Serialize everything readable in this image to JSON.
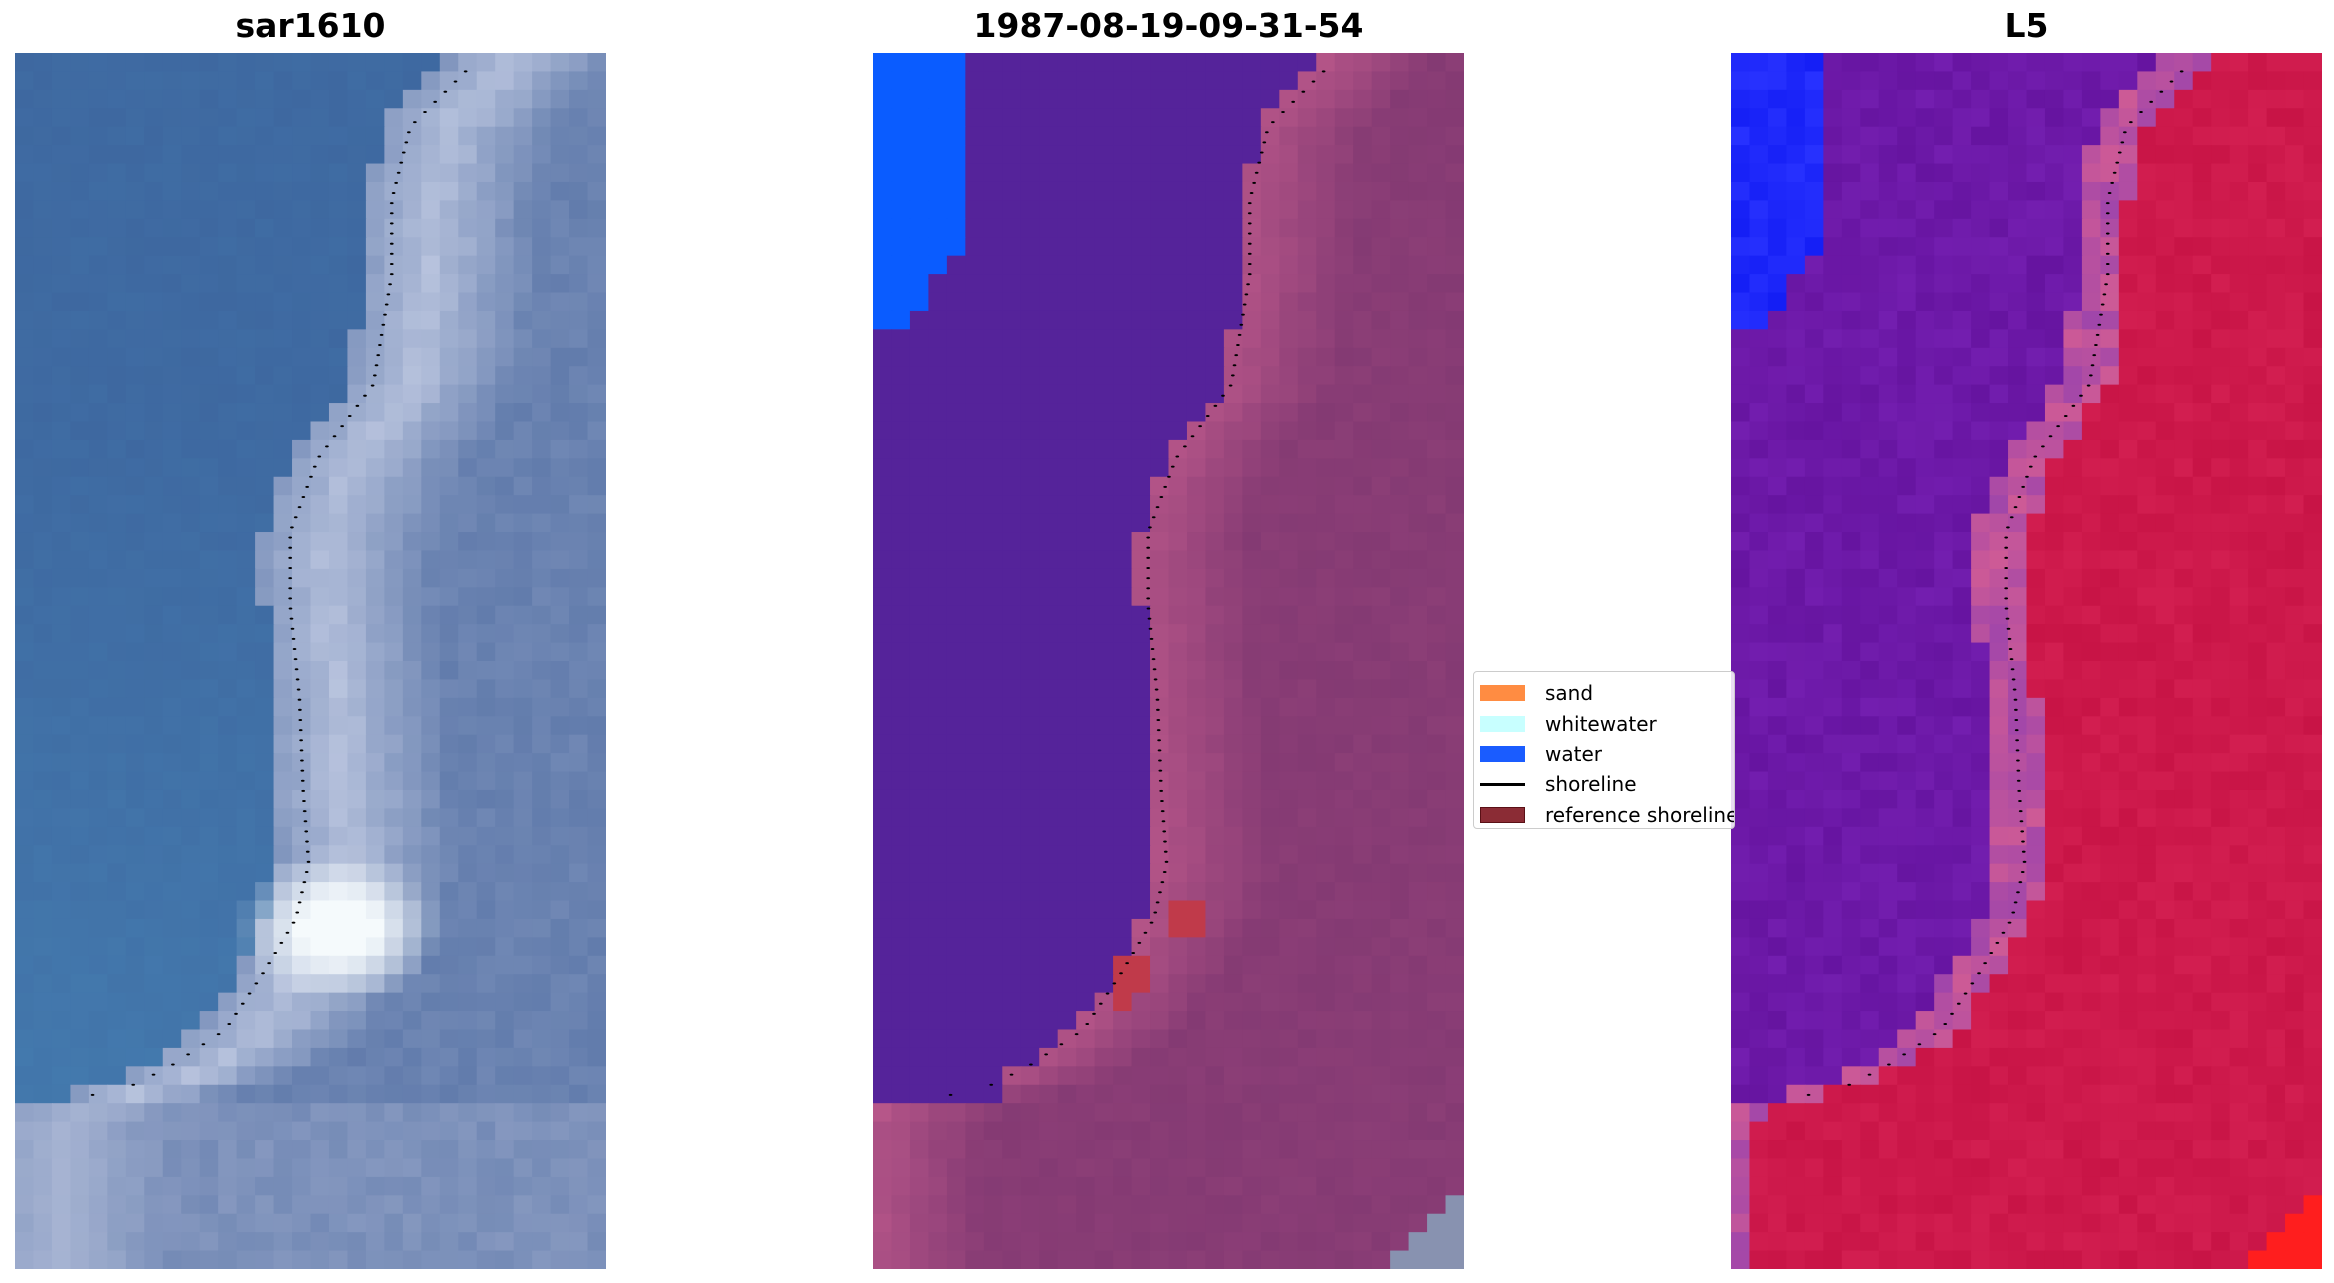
{
  "panels": [
    {
      "id": "rgb",
      "title": "sar1610"
    },
    {
      "id": "classified",
      "title": "1987-08-19-09-31-54"
    },
    {
      "id": "mndwi",
      "title": "L5"
    }
  ],
  "legend": {
    "items": [
      {
        "label": "sand",
        "kind": "patch",
        "color": "#ff8c42"
      },
      {
        "label": "whitewater",
        "kind": "patch",
        "color": "#c8ffff"
      },
      {
        "label": "water",
        "kind": "patch",
        "color": "#1a5cff"
      },
      {
        "label": "shoreline",
        "kind": "line",
        "color": "#000000"
      },
      {
        "label": "reference shoreline",
        "kind": "patch",
        "color": "#8b2c35",
        "edge": "#5a1016"
      }
    ]
  },
  "colors": {
    "rgb_water": "#3f6fa8",
    "rgb_surf": "#e8f0f6",
    "class_water": "#55239a",
    "class_land": "#8a3e78",
    "water_mask": "#0a5cff",
    "index_water": "#6a1aa6",
    "index_land": "#c41646",
    "index_edge": "#ff1e1e"
  }
}
